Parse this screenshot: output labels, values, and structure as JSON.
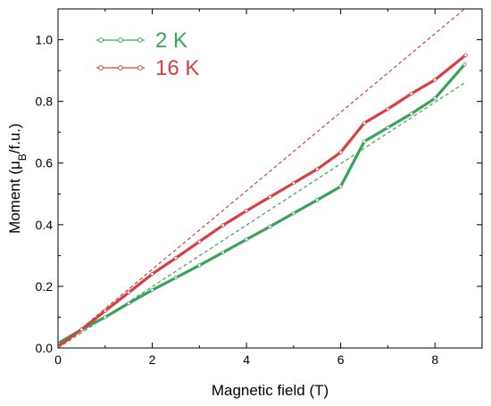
{
  "chart_data": {
    "type": "line",
    "xlabel": "Magnetic field (T)",
    "ylabel_prefix": "Moment (μ",
    "ylabel_sub": "B",
    "ylabel_suffix": "/f.u.)",
    "xlim": [
      0,
      9
    ],
    "ylim": [
      0,
      1.1
    ],
    "x_ticks": [
      0,
      2,
      4,
      6,
      8
    ],
    "y_ticks": [
      0.0,
      0.2,
      0.4,
      0.6,
      0.8,
      1.0
    ],
    "x_tick_labels": [
      "0",
      "2",
      "4",
      "6",
      "8"
    ],
    "y_tick_labels": [
      "0.0",
      "0.2",
      "0.4",
      "0.6",
      "0.8",
      "1.0"
    ],
    "legend_position": "top-left",
    "series": [
      {
        "name": "2 K",
        "color": "#3aa35a",
        "marker": "open-circle",
        "x": [
          0,
          0.5,
          1,
          1.5,
          2,
          2.5,
          3,
          3.5,
          4,
          4.5,
          5,
          5.5,
          6,
          6.5,
          7,
          7.5,
          8,
          8.63
        ],
        "y": [
          0.015,
          0.06,
          0.1,
          0.145,
          0.188,
          0.228,
          0.268,
          0.31,
          0.352,
          0.394,
          0.437,
          0.48,
          0.524,
          0.67,
          0.715,
          0.76,
          0.81,
          0.92
        ]
      },
      {
        "name": "16 K",
        "color": "#d84040",
        "marker": "open-circle",
        "x": [
          0,
          0.5,
          1,
          1.5,
          2,
          2.5,
          3,
          3.5,
          4,
          4.5,
          5,
          5.5,
          6,
          6.5,
          7,
          7.5,
          8,
          8.65
        ],
        "y": [
          0.005,
          0.06,
          0.12,
          0.18,
          0.24,
          0.292,
          0.345,
          0.398,
          0.445,
          0.49,
          0.535,
          0.58,
          0.635,
          0.73,
          0.775,
          0.825,
          0.87,
          0.95
        ]
      }
    ],
    "fit_lines": [
      {
        "series": "2 K",
        "style": "dashed",
        "color": "#3aa35a",
        "x": [
          0,
          8.63
        ],
        "y": [
          0.0,
          0.86
        ]
      },
      {
        "series": "16 K",
        "style": "dashed",
        "color": "#d84040",
        "x": [
          0,
          8.63
        ],
        "y": [
          0.0,
          1.1
        ]
      }
    ]
  }
}
